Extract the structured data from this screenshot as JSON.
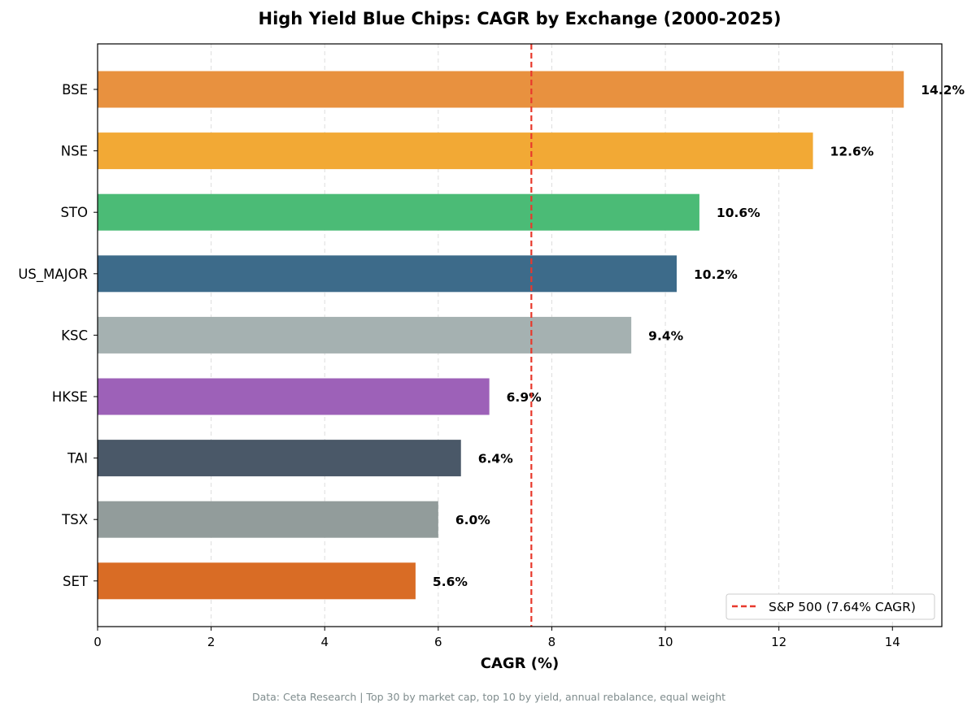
{
  "chart_data": {
    "type": "bar",
    "orientation": "horizontal",
    "title": "High Yield Blue Chips: CAGR by Exchange (2000-2025)",
    "xlabel": "CAGR (%)",
    "ylabel": "",
    "xlim": [
      0,
      14.87
    ],
    "xticks": [
      0,
      2,
      4,
      6,
      8,
      10,
      12,
      14
    ],
    "grid": "x-dashed",
    "categories": [
      "BSE",
      "NSE",
      "STO",
      "US_MAJOR",
      "KSC",
      "HKSE",
      "TAI",
      "TSX",
      "SET"
    ],
    "values": [
      14.2,
      12.6,
      10.6,
      10.2,
      9.4,
      6.9,
      6.4,
      6.0,
      5.6
    ],
    "data_labels": [
      "14.2%",
      "12.6%",
      "10.6%",
      "10.2%",
      "9.4%",
      "6.9%",
      "6.4%",
      "6.0%",
      "5.6%"
    ],
    "colors": [
      "#e8913f",
      "#f2a935",
      "#4bbb76",
      "#3d6b8a",
      "#a5b1b1",
      "#9d61b8",
      "#4a5868",
      "#929c9b",
      "#d96c25"
    ],
    "reference_line": {
      "value": 7.64,
      "label": "S&P 500 (7.64% CAGR)",
      "color": "#e8392c",
      "style": "dashed"
    },
    "legend_position": "lower-right"
  },
  "footer": "Data: Ceta Research | Top 30 by market cap, top 10 by yield, annual rebalance, equal weight"
}
